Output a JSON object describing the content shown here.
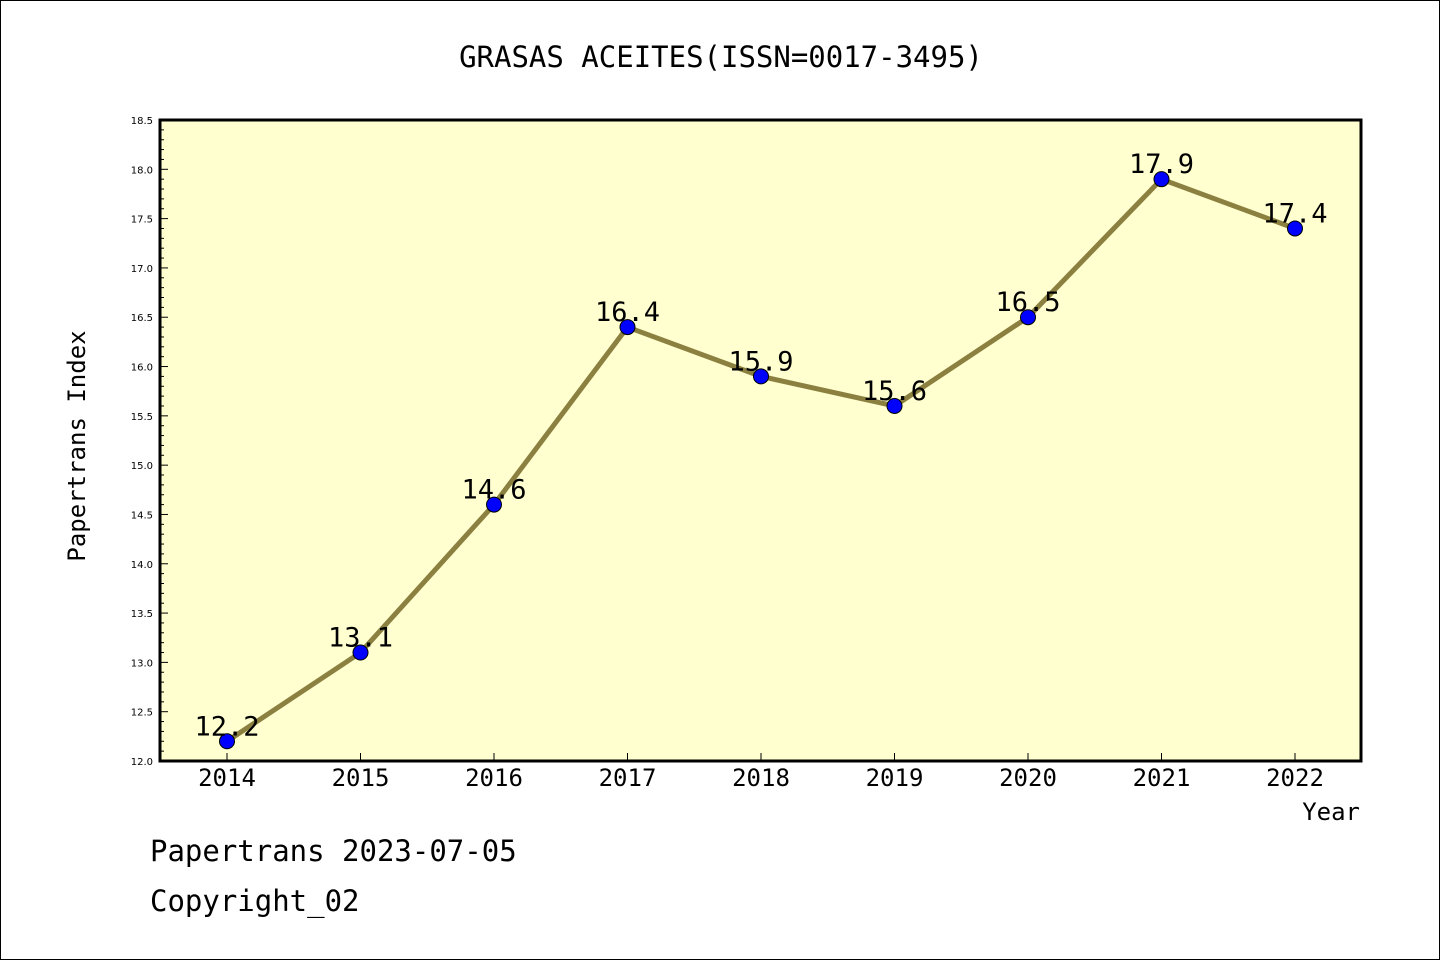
{
  "chart_data": {
    "type": "line",
    "title": "GRASAS ACEITES(ISSN=0017-3495)",
    "xlabel": "Year",
    "ylabel": "Papertrans Index",
    "x": [
      "2014",
      "2015",
      "2016",
      "2017",
      "2018",
      "2019",
      "2020",
      "2021",
      "2022"
    ],
    "values": [
      12.2,
      13.1,
      14.6,
      16.4,
      15.9,
      15.6,
      16.5,
      17.9,
      17.4
    ],
    "data_labels": [
      "12.2",
      "13.1",
      "14.6",
      "16.4",
      "15.9",
      "15.6",
      "16.5",
      "17.9",
      "17.4"
    ],
    "ylim": [
      12.0,
      18.5
    ],
    "y_ticks": [
      "12.0",
      "12.5",
      "13.0",
      "13.5",
      "14.0",
      "14.5",
      "15.0",
      "15.5",
      "16.0",
      "16.5",
      "17.0",
      "17.5",
      "18.0",
      "18.5"
    ],
    "grid": false,
    "colors": {
      "plot_background": "#ffffd0",
      "line": "#8b8040",
      "marker": "#0000ff"
    }
  },
  "footer": {
    "line1": "Papertrans 2023-07-05",
    "line2": "Copyright_02"
  }
}
